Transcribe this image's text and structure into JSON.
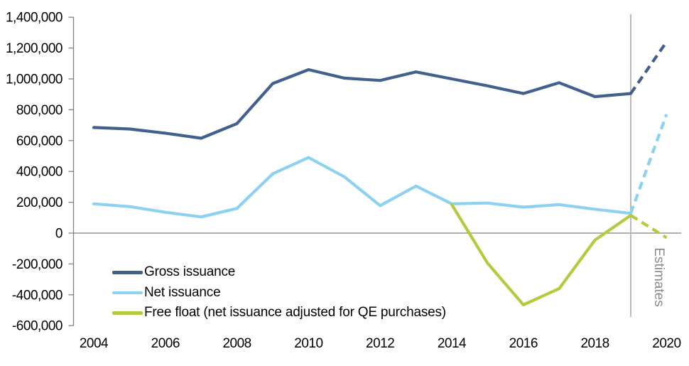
{
  "chart_data": {
    "type": "line",
    "title": "",
    "xlabel": "",
    "ylabel": "",
    "x": [
      2004,
      2005,
      2006,
      2007,
      2008,
      2009,
      2010,
      2011,
      2012,
      2013,
      2014,
      2015,
      2016,
      2017,
      2018,
      2019,
      2020
    ],
    "x_tick_labels": [
      "2004",
      "2006",
      "2008",
      "2010",
      "2012",
      "2014",
      "2016",
      "2018",
      "2020"
    ],
    "y_tick_labels": [
      "1,400,000",
      "1,200,000",
      "1,000,000",
      "800,000",
      "600,000",
      "400,000",
      "200,000",
      "0",
      "-200,000",
      "-400,000",
      "-600,000"
    ],
    "y_tick_values": [
      1400000,
      1200000,
      1000000,
      800000,
      600000,
      400000,
      200000,
      0,
      -200000,
      -400000,
      -600000
    ],
    "ylim": [
      -600000,
      1400000
    ],
    "grid": "none",
    "legend_position": "inside-bottom-left",
    "estimate_boundary_year": 2019,
    "annotations": {
      "estimates_label": "Estimates"
    },
    "series": [
      {
        "name": "Gross issuance",
        "color": "#41608d",
        "values": [
          685000,
          675000,
          648000,
          615000,
          710000,
          970000,
          1060000,
          1005000,
          990000,
          1045000,
          1000000,
          955000,
          905000,
          975000,
          885000,
          905000,
          1240000
        ]
      },
      {
        "name": "Net issuance",
        "color": "#8cd2f0",
        "values": [
          190000,
          172000,
          135000,
          105000,
          160000,
          385000,
          490000,
          365000,
          178000,
          305000,
          190000,
          195000,
          168000,
          185000,
          155000,
          128000,
          770000
        ]
      },
      {
        "name": "Free float (net issuance adjusted for QE purchases)",
        "color": "#b7c93f",
        "values": [
          null,
          null,
          null,
          null,
          null,
          null,
          null,
          null,
          null,
          null,
          185000,
          -195000,
          -465000,
          -360000,
          -45000,
          115000,
          -30000
        ]
      }
    ]
  },
  "colors": {
    "axis": "#808080",
    "estimate_line": "#b3b3b3",
    "estimates_text": "#8a8a8a",
    "tick_text": "#000000"
  }
}
